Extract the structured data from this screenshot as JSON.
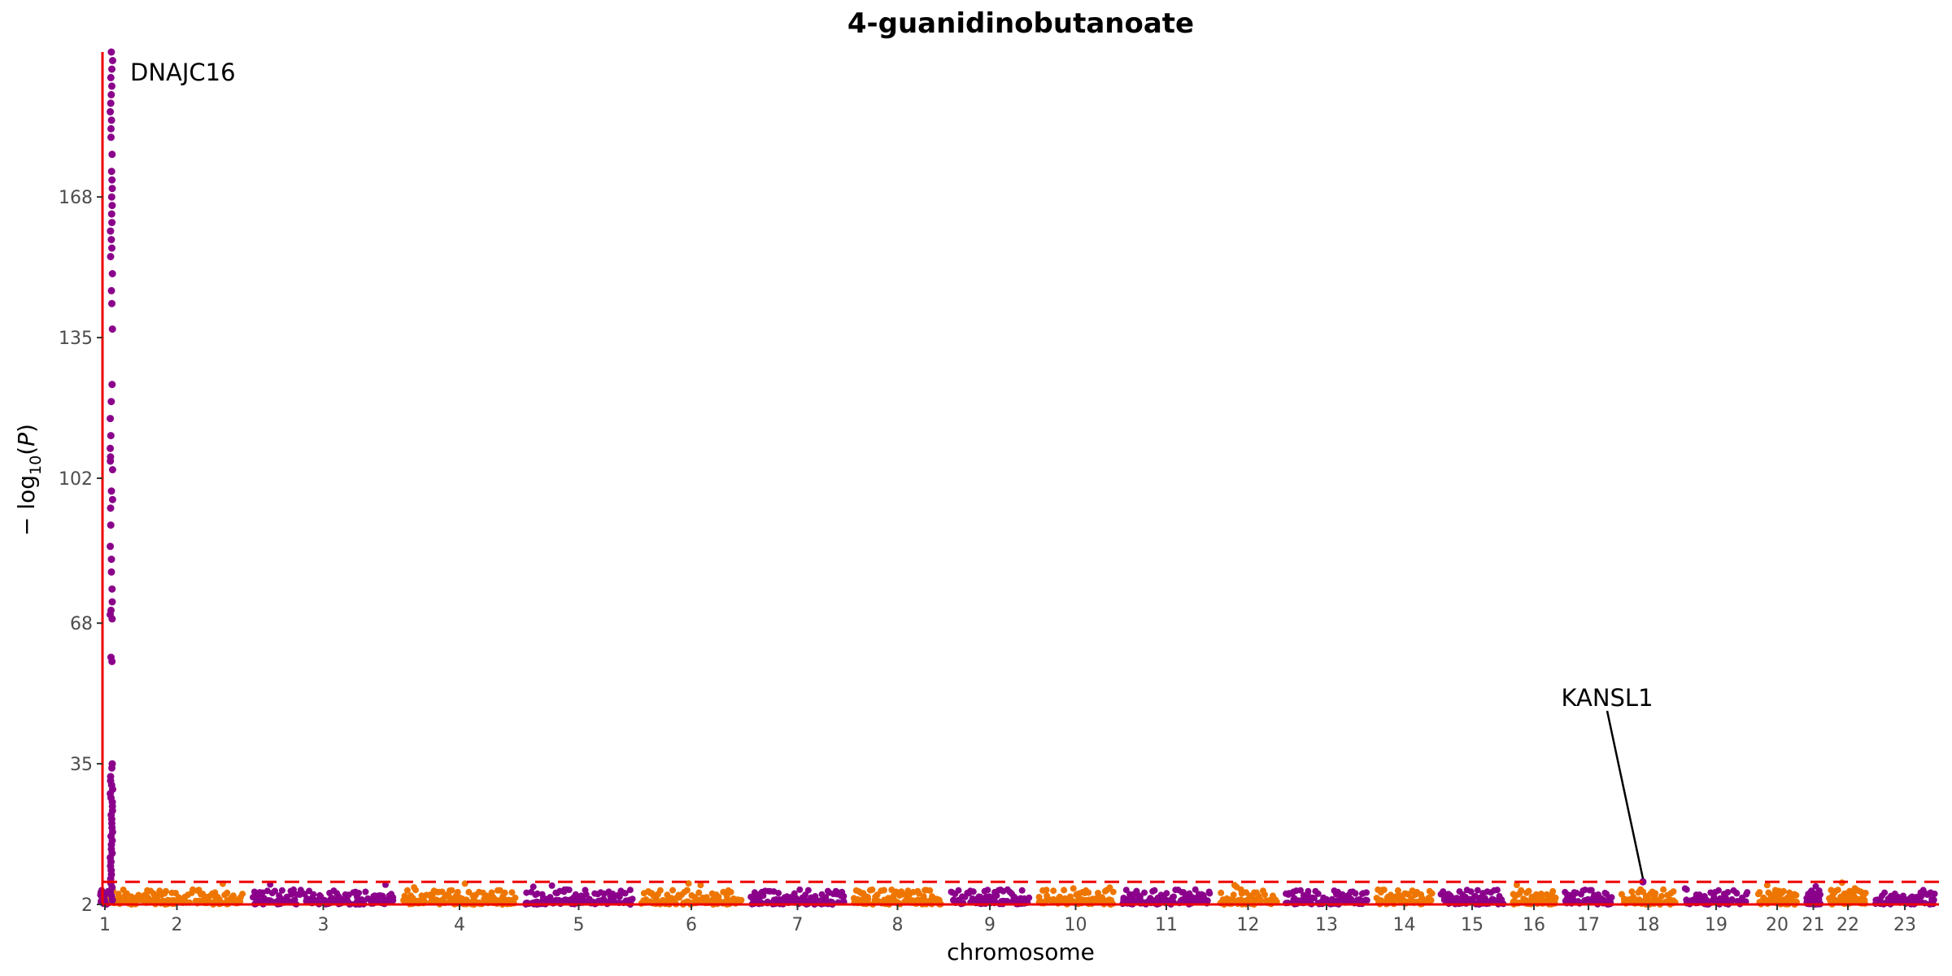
{
  "chart_data": {
    "type": "scatter",
    "subtype": "manhattan",
    "title": "4-guanidinobutanoate",
    "xlabel": "chromosome",
    "ylabel": "-log10(P)",
    "ylim": [
      2,
      202
    ],
    "yticks": [
      2,
      35,
      68,
      102,
      135,
      168
    ],
    "ytick_labels": [
      "2",
      "35",
      "68",
      "102",
      "135",
      "168"
    ],
    "chromosomes": [
      "1",
      "2",
      "3",
      "4",
      "5",
      "6",
      "7",
      "8",
      "9",
      "10",
      "11",
      "12",
      "13",
      "14",
      "15",
      "16",
      "17",
      "18",
      "19",
      "20",
      "21",
      "22",
      "23"
    ],
    "colors": {
      "odd": "#8B008B",
      "even": "#EE7600",
      "threshold": "#EE0000",
      "axis": "#EE0000"
    },
    "significance_threshold": 7.3,
    "baseline_range": [
      2,
      7
    ],
    "annotations": [
      {
        "label": "DNAJC16",
        "chromosome": "1",
        "y": 202
      },
      {
        "label": "KANSL1",
        "chromosome": "17",
        "y": 7.3
      }
    ],
    "peak_chr1_values": [
      202,
      200,
      198,
      196,
      194,
      192,
      190,
      188,
      186,
      184,
      182,
      178,
      174,
      172,
      170,
      168,
      166,
      164,
      162,
      160,
      158,
      156,
      154,
      150,
      146,
      143,
      137,
      124,
      120,
      116,
      112,
      109,
      107,
      106,
      104,
      99,
      97,
      95,
      91,
      86,
      83,
      80,
      76,
      73,
      71,
      70,
      69,
      60,
      59,
      35,
      34,
      32,
      31,
      30,
      29,
      28,
      27,
      26,
      25,
      24,
      23,
      22,
      21,
      20,
      19,
      18,
      17,
      16,
      15,
      14,
      13,
      12,
      11,
      10,
      9,
      8,
      7,
      6,
      5,
      4,
      3
    ],
    "peak_chr17_value": 7.3
  }
}
